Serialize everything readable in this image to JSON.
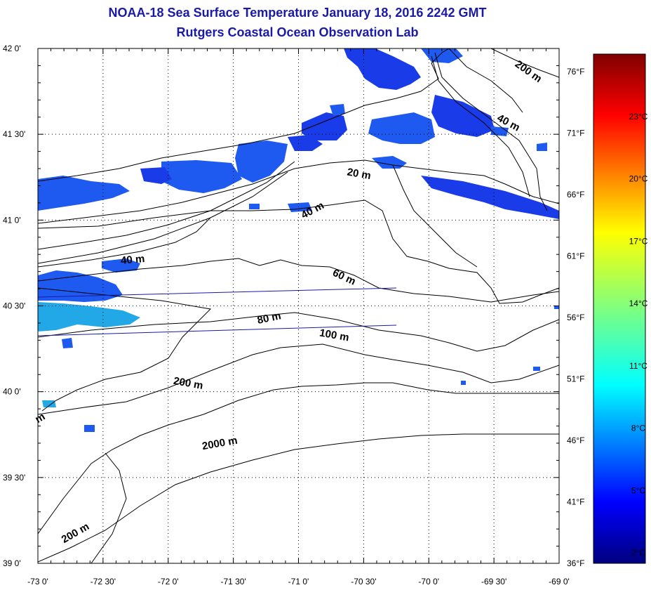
{
  "title": "NOAA-18 Sea Surface Temperature January 18, 2016 2242 GMT",
  "subtitle": "Rutgers Coastal Ocean Observation Lab",
  "map": {
    "lon_range": [
      -73.0,
      -69.0
    ],
    "lat_range": [
      39.0,
      42.0
    ],
    "grid": "dotted",
    "lon_ticks": [
      "-73 0'",
      "-72 30'",
      "-72 0'",
      "-71 30'",
      "-71 0'",
      "-70 30'",
      "-70 0'",
      "-69 30'",
      "-69 0'"
    ],
    "lat_ticks": [
      "39 0'",
      "39 30'",
      "40 0'",
      "40 30'",
      "41 0'",
      "41 30'",
      "42 0'"
    ],
    "fahrenheit_ticks": [
      "36°F",
      "41°F",
      "46°F",
      "51°F",
      "56°F",
      "61°F",
      "66°F",
      "71°F",
      "76°F"
    ],
    "depth_labels": [
      {
        "text": "200 m",
        "lon": -69.25,
        "lat": 41.85,
        "angle": 35
      },
      {
        "text": "40 m",
        "lon": -69.4,
        "lat": 41.55,
        "angle": 28
      },
      {
        "text": "20 m",
        "lon": -70.54,
        "lat": 41.25,
        "angle": 10
      },
      {
        "text": "40 m",
        "lon": -70.88,
        "lat": 41.04,
        "angle": -28
      },
      {
        "text": "40 m",
        "lon": -72.27,
        "lat": 40.75,
        "angle": -5
      },
      {
        "text": "60 m",
        "lon": -70.66,
        "lat": 40.65,
        "angle": 25
      },
      {
        "text": "80 m",
        "lon": -71.22,
        "lat": 40.41,
        "angle": -12
      },
      {
        "text": "100 m",
        "lon": -70.73,
        "lat": 40.31,
        "angle": 10
      },
      {
        "text": "200 m",
        "lon": -71.85,
        "lat": 40.03,
        "angle": 10
      },
      {
        "text": "2000 m",
        "lon": -71.6,
        "lat": 39.68,
        "angle": -10
      },
      {
        "text": "200 m",
        "lon": -72.7,
        "lat": 39.16,
        "angle": -30
      },
      {
        "text": "m",
        "lon": -72.97,
        "lat": 39.83,
        "angle": -30
      }
    ]
  },
  "colorbar": {
    "celsius_ticks": [
      "2°C",
      "5°C",
      "8°C",
      "11°C",
      "14°C",
      "17°C",
      "20°C",
      "23°C"
    ],
    "min_c": 1.5,
    "max_c": 26
  },
  "colors": {
    "title": "#1a1aa8",
    "sst_dark": "#1030e0",
    "sst_mid": "#1e6cf0",
    "sst_light": "#20b8e8"
  }
}
